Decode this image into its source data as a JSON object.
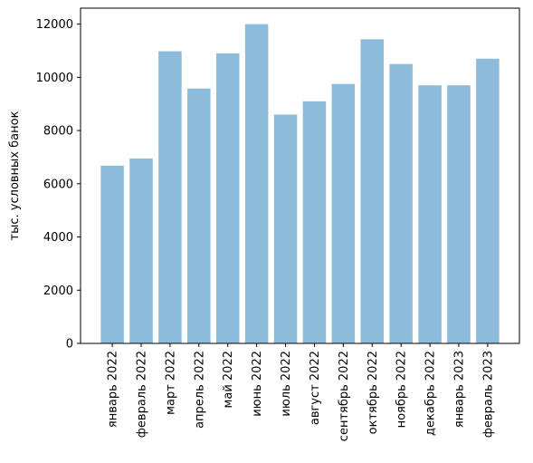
{
  "chart_data": {
    "type": "bar",
    "title": "",
    "xlabel": "",
    "ylabel": "тыс. условных банок",
    "categories": [
      "январь 2022",
      "февраль 2022",
      "март 2022",
      "апрель 2022",
      "май 2022",
      "июнь 2022",
      "июль 2022",
      "август 2022",
      "сентябрь 2022",
      "октябрь 2022",
      "ноябрь 2022",
      "декабрь 2022",
      "январь 2023",
      "февраль 2023"
    ],
    "values": [
      6680,
      6950,
      10980,
      9580,
      10900,
      12000,
      8600,
      9100,
      9750,
      11430,
      10500,
      9700,
      9700,
      10700
    ],
    "ylim": [
      0,
      12600
    ],
    "yticks": [
      0,
      2000,
      4000,
      6000,
      8000,
      10000,
      12000
    ],
    "bar_color": "#8dbbdb",
    "grid": false,
    "legend": "none"
  }
}
